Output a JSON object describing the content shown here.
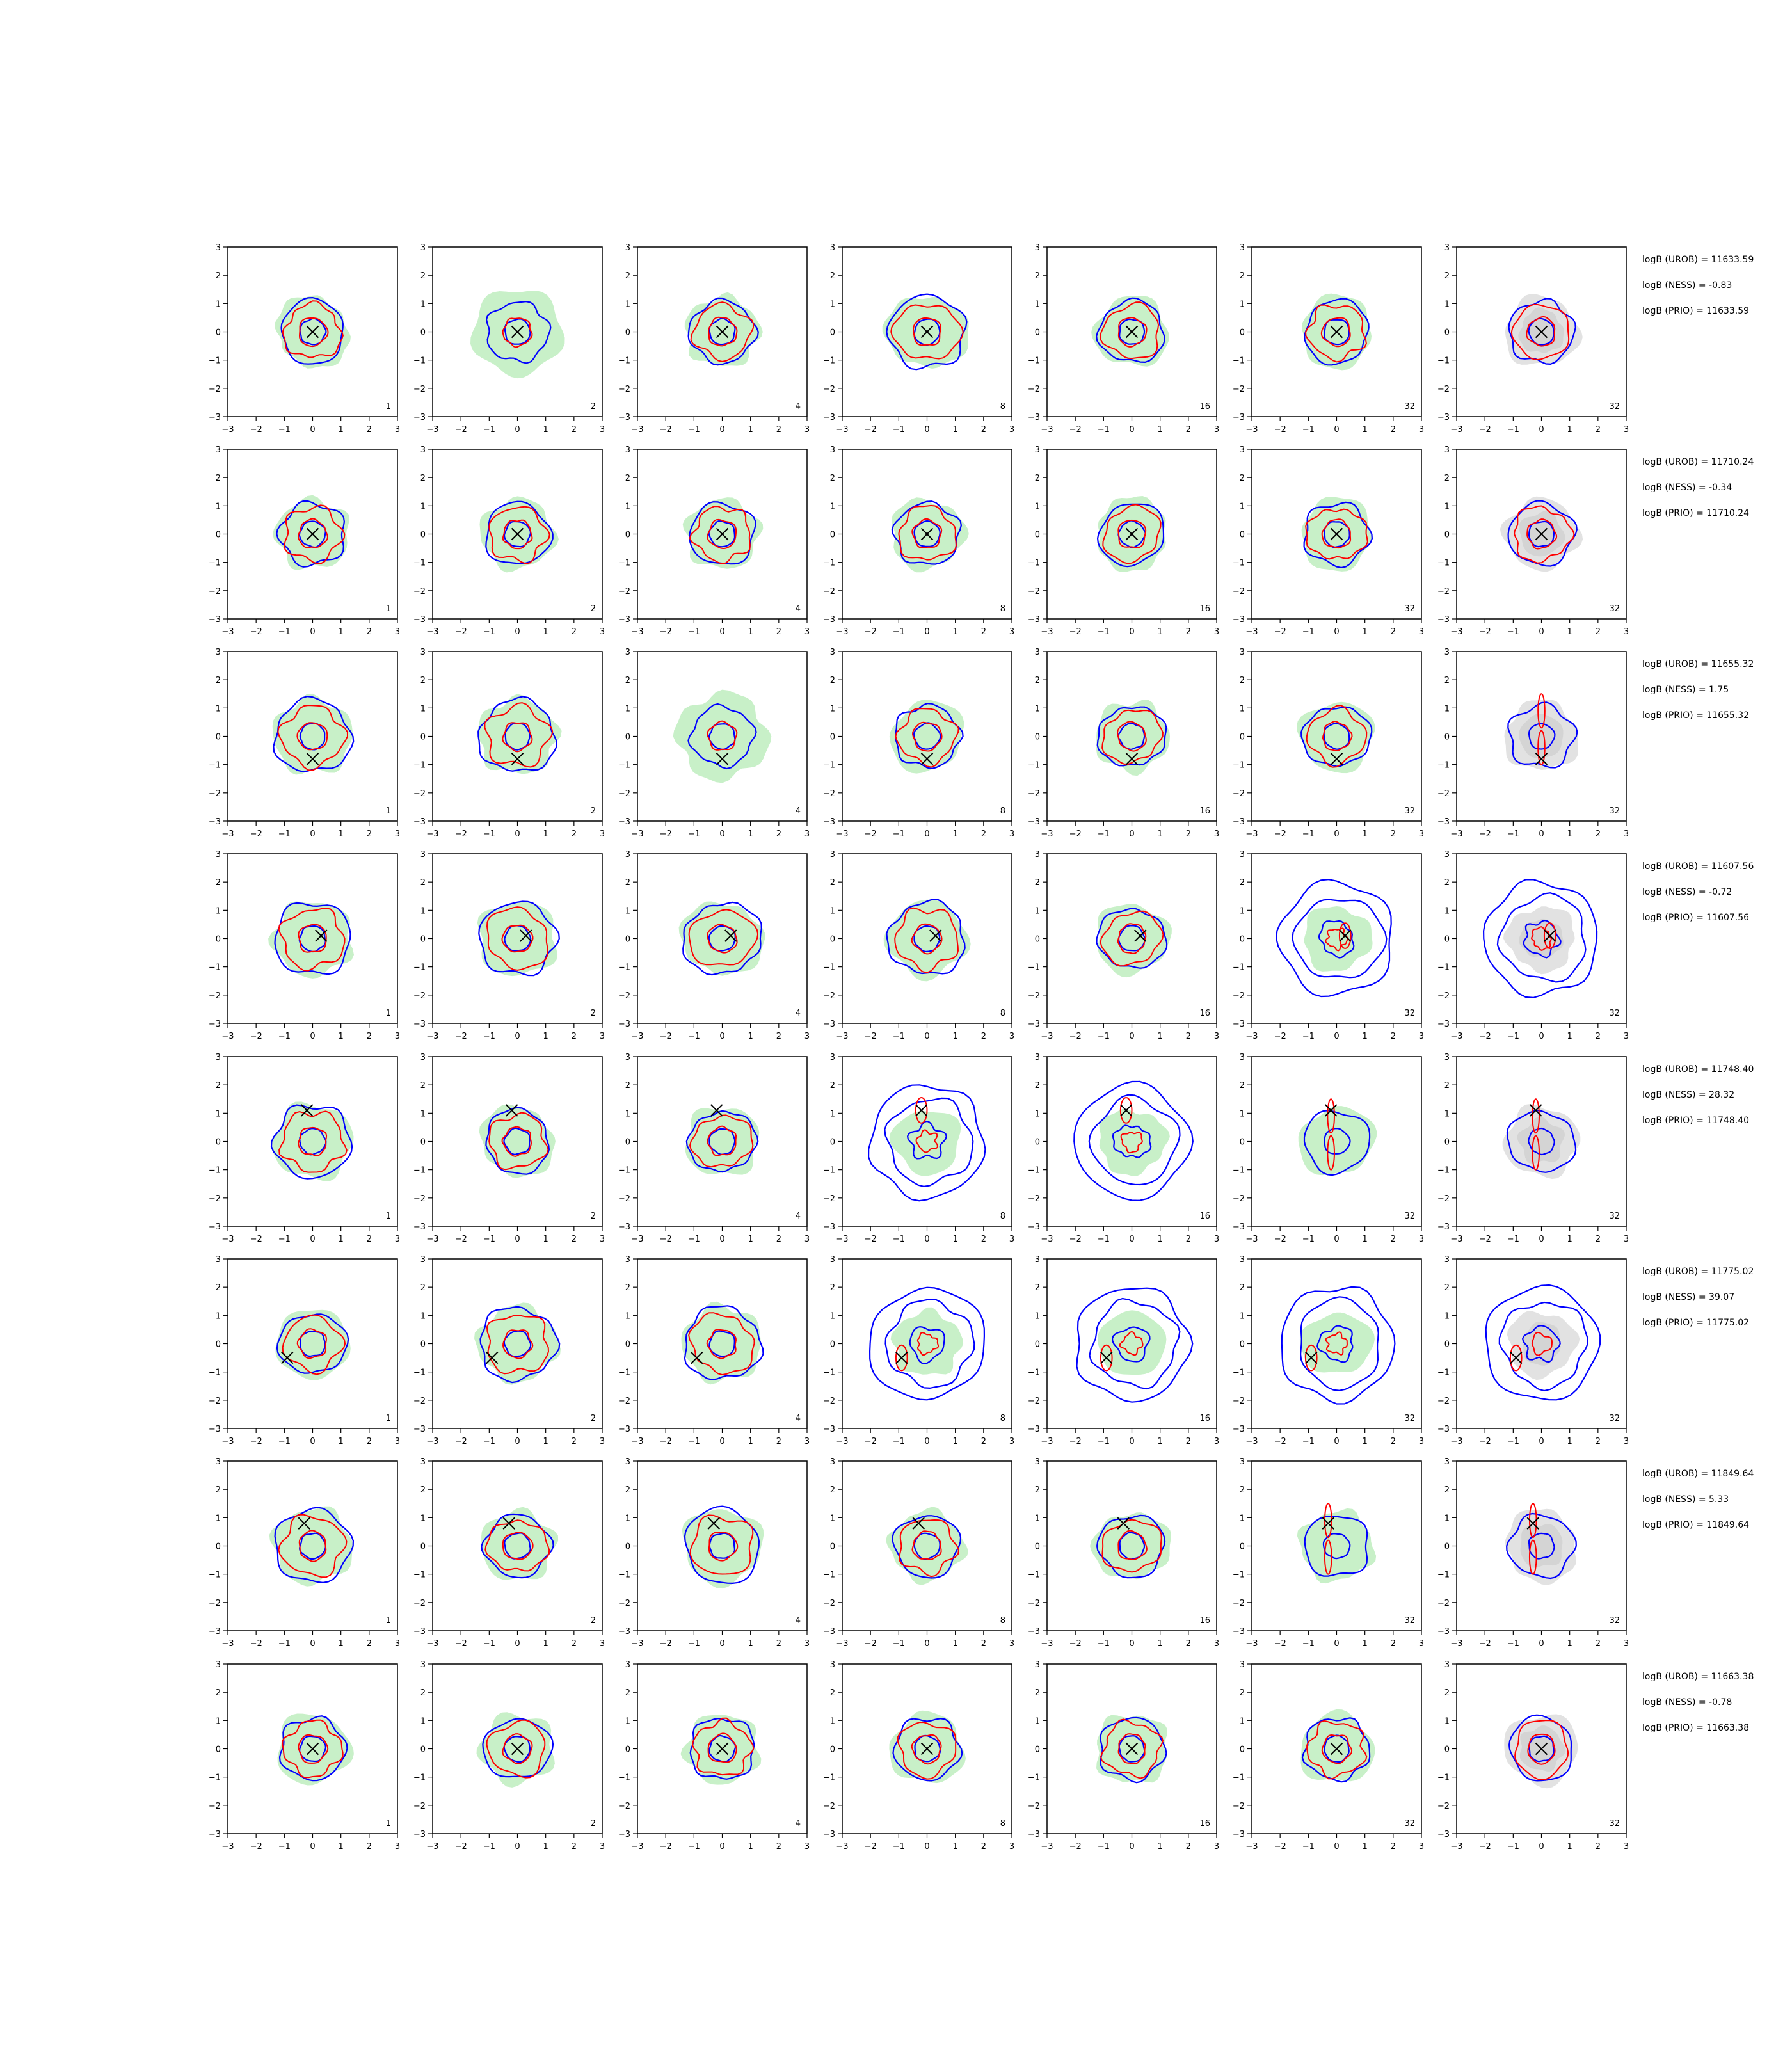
{
  "figure": {
    "layout": {
      "rows": 8,
      "cols": 7
    },
    "colors": {
      "blue_contour": "#0000ff",
      "red_contour": "#ff0000",
      "green_fill": "#c8f0c8",
      "gray_fill": "#e2e2e2",
      "marker": "#000000",
      "axes": "#000000"
    },
    "axis": {
      "xlim": [
        -3,
        3
      ],
      "ylim": [
        -3,
        3
      ],
      "xticks": [
        "−3",
        "−2",
        "−1",
        "0",
        "1",
        "2",
        "3"
      ],
      "yticks": [
        "3",
        "2",
        "1",
        "0",
        "−1",
        "−2",
        "−3"
      ]
    },
    "panel_labels": [
      "1",
      "2",
      "4",
      "8",
      "16",
      "32",
      "32"
    ]
  },
  "rows": [
    {
      "marker": [
        0,
        0
      ],
      "shapes": [
        "small",
        "wide",
        "small",
        "mid",
        "small",
        "small",
        "small"
      ],
      "annotations": [
        "logB (UROB) = 11633.59",
        "logB (NESS) = -0.83",
        "logB (PRIO) = 11633.59"
      ]
    },
    {
      "marker": [
        0,
        0
      ],
      "shapes": [
        "small",
        "small",
        "small",
        "small",
        "small",
        "small",
        "small"
      ],
      "annotations": [
        "logB (UROB) = 11710.24",
        "logB (NESS) = -0.34",
        "logB (PRIO) = 11710.24"
      ]
    },
    {
      "marker": [
        0,
        -0.8
      ],
      "shapes": [
        "mid",
        "mid",
        "wide",
        "small",
        "small",
        "small",
        "vert"
      ],
      "annotations": [
        "logB (UROB) = 11655.32",
        "logB (NESS) = 1.75",
        "logB (PRIO) = 11655.32"
      ]
    },
    {
      "marker": [
        0.3,
        0.1
      ],
      "shapes": [
        "mid",
        "mid",
        "mid",
        "mid",
        "small",
        "ring",
        "ring"
      ],
      "annotations": [
        "logB (UROB) = 11607.56",
        "logB (NESS) = -0.72",
        "logB (PRIO) = 11607.56"
      ]
    },
    {
      "marker": [
        -0.2,
        1.1
      ],
      "shapes": [
        "mid",
        "small",
        "small",
        "ring",
        "ring",
        "vert",
        "vert"
      ],
      "annotations": [
        "logB (UROB) = 11748.40",
        "logB (NESS) = 28.32",
        "logB (PRIO) = 11748.40"
      ]
    },
    {
      "marker": [
        -0.9,
        -0.5
      ],
      "shapes": [
        "small",
        "mid",
        "mid",
        "ring",
        "ring",
        "ring",
        "ring"
      ],
      "annotations": [
        "logB (UROB) = 11775.02",
        "logB (NESS) = 39.07",
        "logB (PRIO) = 11775.02"
      ]
    },
    {
      "marker": [
        -0.3,
        0.8
      ],
      "shapes": [
        "mid",
        "small",
        "mid",
        "small",
        "small",
        "vert",
        "vert"
      ],
      "annotations": [
        "logB (UROB) = 11849.64",
        "logB (NESS) = 5.33",
        "logB (PRIO) = 11849.64"
      ]
    },
    {
      "marker": [
        0,
        0
      ],
      "shapes": [
        "small",
        "small",
        "small",
        "small",
        "small",
        "small",
        "small"
      ],
      "annotations": [
        "logB (UROB) = 11663.38",
        "logB (NESS) = -0.78",
        "logB (PRIO) = 11663.38"
      ]
    }
  ]
}
